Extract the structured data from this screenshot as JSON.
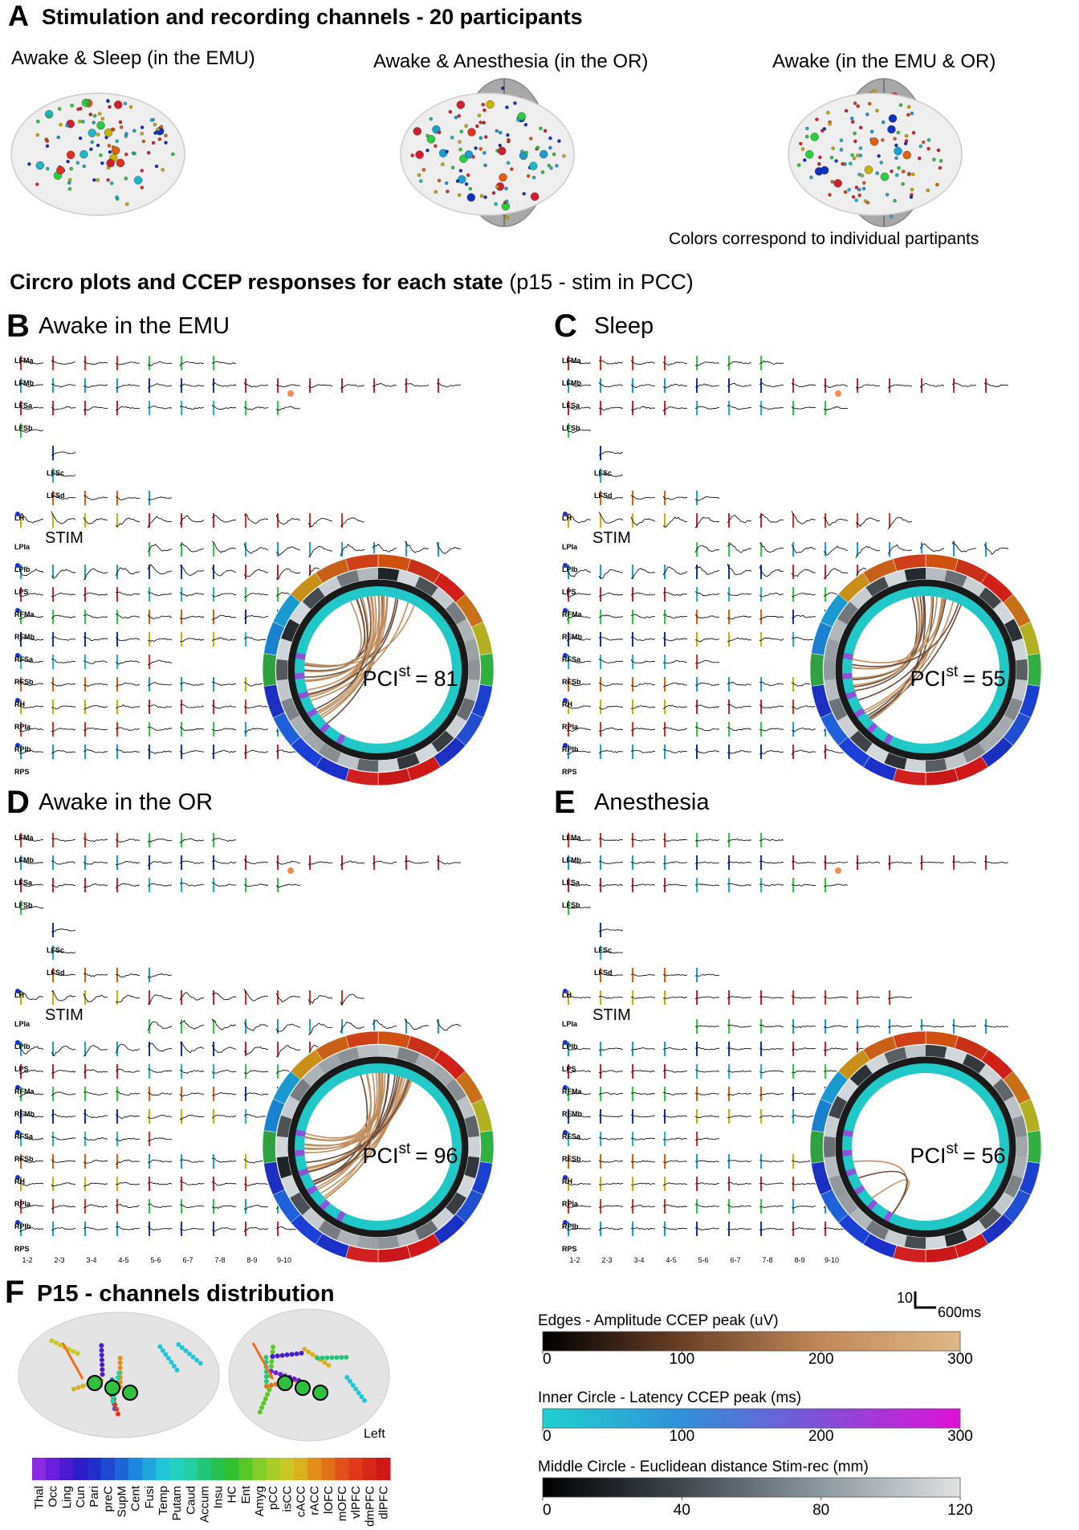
{
  "panel_a": {
    "label": "A",
    "title": "Stimulation and recording channels - 20 participants",
    "subtitles": [
      "Awake & Sleep (in the EMU)",
      "Awake & Anesthesia (in the OR)",
      "Awake (in the EMU & OR)"
    ],
    "note": "Colors correspond to individual partipants"
  },
  "section": {
    "title": "Circro plots and CCEP responses for each state",
    "subtitle": "(p15 - stim in PCC)"
  },
  "panels": [
    {
      "label": "B",
      "title": "Awake in the EMU",
      "pci": {
        "name": "PCI",
        "sup": "st",
        "rest": "= 81"
      }
    },
    {
      "label": "C",
      "title": "Sleep",
      "pci": {
        "name": "PCI",
        "sup": "st",
        "rest": "= 55"
      }
    },
    {
      "label": "D",
      "title": "Awake in the OR",
      "pci": {
        "name": "PCI",
        "sup": "st",
        "rest": "= 96"
      }
    },
    {
      "label": "E",
      "title": "Anesthesia",
      "pci": {
        "name": "PCI",
        "sup": "st",
        "rest": "= 56"
      }
    }
  ],
  "channels": [
    "LFMa",
    "LFMb",
    "LFSa",
    "LFSb",
    "LFSc",
    "LFSd",
    "LH",
    "LPIa",
    "LPIb",
    "LPS",
    "RFMa",
    "RFMb",
    "RFSa",
    "RFSb",
    "RH",
    "RPIa",
    "RPIb",
    "RPS"
  ],
  "stim_label": "STIM",
  "x_labels": [
    "1-2",
    "2-3",
    "3-4",
    "4-5",
    "5-6",
    "6-7",
    "7-8",
    "8-9",
    "9-10"
  ],
  "scalebar": {
    "amplitude": "10",
    "time": "600ms"
  },
  "panel_f": {
    "label": "F",
    "title": "P15 - channels distribution",
    "side": "Left",
    "regions": [
      "Thal",
      "Occ",
      "Ling",
      "Cun",
      "Pari",
      "preC",
      "SupM",
      "Cent",
      "Fusi",
      "Temp",
      "Putam",
      "Caud",
      "Accum",
      "Insu",
      "HC",
      "Ent",
      "Amyg",
      "pCC",
      "isCC",
      "cACC",
      "rACC",
      "lOFC",
      "mOFC",
      "vlPFC",
      "dmPFC",
      "dlPFC"
    ],
    "region_colors": [
      "#8a2be2",
      "#6a1fd8",
      "#4b1bd0",
      "#2c1dc8",
      "#1e30c8",
      "#1e4ad0",
      "#1e66d8",
      "#1e86dc",
      "#20a6dc",
      "#22c4d8",
      "#22d2c0",
      "#22d0a0",
      "#22c878",
      "#28c050",
      "#30c030",
      "#58c828",
      "#80cc28",
      "#a8cc28",
      "#c8c828",
      "#d8b020",
      "#e09018",
      "#e07018",
      "#e05018",
      "#e03818",
      "#d82818",
      "#d01818"
    ]
  },
  "colorbars": [
    {
      "title": "Edges - Amplitude CCEP peak (uV)",
      "range": [
        0,
        300
      ],
      "ticks": [
        0,
        100,
        200,
        300
      ],
      "colors": [
        "#000000",
        "#6a4028",
        "#c08858",
        "#e0b888"
      ]
    },
    {
      "title": "Inner Circle - Latency CCEP peak (ms)",
      "range": [
        0,
        300
      ],
      "ticks": [
        0,
        100,
        200,
        300
      ],
      "colors": [
        "#20d0d0",
        "#3090d8",
        "#8050d8",
        "#e010d8"
      ]
    },
    {
      "title": "Middle Circle - Euclidean distance Stim-rec (mm)",
      "range": [
        0,
        120
      ],
      "ticks": [
        0,
        40,
        80,
        120
      ],
      "colors": [
        "#000000",
        "#404850",
        "#8c98a0",
        "#e0e0e0"
      ]
    }
  ]
}
